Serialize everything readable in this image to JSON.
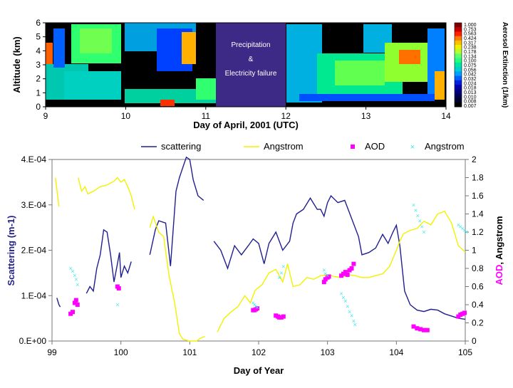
{
  "lidar_panel": {
    "y_label": "Altitude (km)",
    "x_label": "Day of April, 2001 (UTC)",
    "y_ticks": [
      "0",
      "1",
      "2",
      "3",
      "4",
      "5",
      "6"
    ],
    "x_ticks": [
      "9",
      "10",
      "11",
      "12",
      "13",
      "14"
    ],
    "annotation_lines": [
      "Precipitation",
      "&",
      "Electricity failure"
    ],
    "colorbar_label": "Aerosol Extinction (1/km)",
    "colorbar_ticks": [
      "1.000",
      "0.753",
      "0.563",
      "0.424",
      "0.317",
      "0.238",
      "0.178",
      "0.134",
      "0.100",
      "0.075",
      "0.056",
      "0.042",
      "0.032",
      "0.024",
      "0.018",
      "0.013",
      "0.010",
      "0.008",
      "0.007"
    ],
    "colormap": [
      "#7a0000",
      "#c40000",
      "#ff2000",
      "#ff7a00",
      "#ffc000",
      "#f0f000",
      "#b0ff30",
      "#60ff70",
      "#20ff80",
      "#00e8a0",
      "#00d0d0",
      "#00a0ff",
      "#0060ff",
      "#0020e0",
      "#0000b0",
      "#000080",
      "#000050",
      "#000030",
      "#000000"
    ]
  },
  "chart_data": {
    "type": "line",
    "xlabel": "Day of Year",
    "ylabel_left": "Scattering (m-1)",
    "ylabel_right_parts": [
      "AOD",
      ", Angstrom"
    ],
    "xlim": [
      99,
      105
    ],
    "ylim_left": [
      0,
      0.0004
    ],
    "ylim_right": [
      0,
      2
    ],
    "x_ticks": [
      "99",
      "100",
      "101",
      "102",
      "103",
      "104",
      "105"
    ],
    "y_left_ticks": [
      "0.E+00",
      "1.E-04",
      "2.E-04",
      "3.E-04",
      "4.E-04"
    ],
    "y_right_ticks": [
      "0",
      "0.2",
      "0.4",
      "0.6",
      "0.8",
      "1",
      "1.2",
      "1.4",
      "1.6",
      "1.8",
      "2"
    ],
    "legend_position": "top",
    "series": [
      {
        "name": "scattering",
        "axis": "left",
        "style": "line",
        "color": "#1f1f8f",
        "segments": [
          [
            [
              99.07,
              9.5e-05
            ],
            [
              99.1,
              8e-05
            ],
            [
              99.12,
              7.5e-05
            ]
          ],
          [
            [
              99.5,
              0.000105
            ],
            [
              99.55,
              0.00012
            ],
            [
              99.6,
              0.00011
            ],
            [
              99.65,
              0.00016
            ],
            [
              99.7,
              0.00019
            ],
            [
              99.75,
              0.000245
            ],
            [
              99.8,
              0.00024
            ],
            [
              99.85,
              0.00019
            ],
            [
              99.9,
              0.00013
            ],
            [
              99.95,
              0.00017
            ],
            [
              99.98,
              0.000195
            ],
            [
              100.0,
              0.00014
            ],
            [
              100.05,
              0.000165
            ],
            [
              100.1,
              0.00015
            ],
            [
              100.15,
              0.000175
            ]
          ],
          [
            [
              100.42,
              0.00019
            ],
            [
              100.5,
              0.000245
            ],
            [
              100.55,
              0.000265
            ],
            [
              100.65,
              0.00026
            ],
            [
              100.72,
              0.000165
            ],
            [
              100.8,
              0.00033
            ],
            [
              100.85,
              0.00036
            ],
            [
              100.95,
              0.000405
            ],
            [
              101.0,
              0.0004
            ],
            [
              101.05,
              0.000355
            ],
            [
              101.12,
              0.00032
            ],
            [
              101.2,
              0.00031
            ]
          ],
          [
            [
              101.35,
              0.00022
            ],
            [
              101.45,
              0.0002
            ],
            [
              101.55,
              0.00016
            ],
            [
              101.65,
              0.00021
            ],
            [
              101.75,
              0.00019
            ],
            [
              101.85,
              0.00021
            ],
            [
              101.92,
              0.000225
            ],
            [
              102.0,
              0.000215
            ],
            [
              102.08,
              0.00017
            ],
            [
              102.15,
              0.000215
            ],
            [
              102.25,
              0.00024
            ],
            [
              102.35,
              0.0002
            ],
            [
              102.45,
              0.00022
            ],
            [
              102.5,
              0.00026
            ],
            [
              102.55,
              0.00028
            ],
            [
              102.65,
              0.00029
            ],
            [
              102.75,
              0.000315
            ],
            [
              102.85,
              0.00029
            ],
            [
              102.9,
              0.00029
            ],
            [
              102.95,
              0.000275
            ],
            [
              103.0,
              0.000305
            ],
            [
              103.05,
              0.00032
            ],
            [
              103.15,
              0.000305
            ],
            [
              103.25,
              0.00031
            ],
            [
              103.35,
              0.00027
            ],
            [
              103.45,
              0.00023
            ],
            [
              103.5,
              0.00019
            ],
            [
              103.6,
              0.000195
            ],
            [
              103.7,
              0.000205
            ],
            [
              103.8,
              0.000235
            ],
            [
              103.88,
              0.000215
            ],
            [
              103.95,
              0.00024
            ],
            [
              104.0,
              0.000255
            ],
            [
              104.05,
              0.00021
            ],
            [
              104.12,
              0.00011
            ],
            [
              104.2,
              8e-05
            ],
            [
              104.3,
              6.8e-05
            ],
            [
              104.4,
              6.5e-05
            ],
            [
              104.5,
              7e-05
            ],
            [
              104.6,
              6.8e-05
            ],
            [
              104.7,
              6e-05
            ],
            [
              104.8,
              5.5e-05
            ],
            [
              104.9,
              5e-05
            ],
            [
              105.0,
              4.8e-05
            ]
          ]
        ]
      },
      {
        "name": "Angstrom",
        "axis": "right",
        "style": "line",
        "color": "#f2f200",
        "segments": [
          [
            [
              99.05,
              1.8
            ],
            [
              99.1,
              1.48
            ]
          ],
          [
            [
              99.38,
              1.8
            ],
            [
              99.43,
              1.65
            ],
            [
              99.48,
              1.7
            ],
            [
              99.52,
              1.62
            ],
            [
              99.6,
              1.65
            ],
            [
              99.7,
              1.7
            ],
            [
              99.8,
              1.72
            ],
            [
              99.9,
              1.76
            ],
            [
              99.95,
              1.8
            ],
            [
              100.0,
              1.75
            ],
            [
              100.05,
              1.78
            ],
            [
              100.1,
              1.7
            ],
            [
              100.15,
              1.6
            ],
            [
              100.2,
              1.45
            ]
          ],
          [
            [
              100.42,
              1.25
            ],
            [
              100.47,
              1.37
            ],
            [
              100.55,
              1.2
            ],
            [
              100.62,
              1.15
            ],
            [
              100.7,
              0.72
            ],
            [
              100.78,
              0.42
            ],
            [
              100.85,
              0.08
            ],
            [
              100.9,
              0.02
            ],
            [
              101.0,
              0.0
            ],
            [
              101.1,
              0.0
            ],
            [
              101.15,
              0.03
            ],
            [
              101.22,
              0.05
            ]
          ],
          [
            [
              101.4,
              0.1
            ],
            [
              101.5,
              0.25
            ],
            [
              101.6,
              0.32
            ],
            [
              101.7,
              0.38
            ],
            [
              101.8,
              0.5
            ],
            [
              101.88,
              0.42
            ],
            [
              101.95,
              0.56
            ],
            [
              102.05,
              0.62
            ],
            [
              102.15,
              0.75
            ],
            [
              102.25,
              0.79
            ],
            [
              102.3,
              0.72
            ],
            [
              102.35,
              0.65
            ],
            [
              102.42,
              0.85
            ],
            [
              102.5,
              0.6
            ],
            [
              102.6,
              0.62
            ],
            [
              102.7,
              0.7
            ],
            [
              102.8,
              0.68
            ],
            [
              102.9,
              0.72
            ],
            [
              103.0,
              0.73
            ],
            [
              103.1,
              0.71
            ],
            [
              103.2,
              0.7
            ],
            [
              103.3,
              0.73
            ],
            [
              103.4,
              0.72
            ],
            [
              103.5,
              0.7
            ],
            [
              103.6,
              0.7
            ],
            [
              103.7,
              0.72
            ],
            [
              103.8,
              0.74
            ],
            [
              103.9,
              0.82
            ],
            [
              104.0,
              1.0
            ],
            [
              104.05,
              1.1
            ],
            [
              104.1,
              1.18
            ],
            [
              104.2,
              1.22
            ],
            [
              104.3,
              1.24
            ],
            [
              104.4,
              1.32
            ],
            [
              104.5,
              1.28
            ],
            [
              104.6,
              1.4
            ],
            [
              104.7,
              1.43
            ],
            [
              104.8,
              1.3
            ],
            [
              104.9,
              1.05
            ],
            [
              105.0,
              0.98
            ]
          ]
        ]
      },
      {
        "name": "AOD",
        "axis": "right",
        "style": "markers",
        "color": "#ff00ff",
        "points": [
          [
            99.27,
            0.3
          ],
          [
            99.3,
            0.32
          ],
          [
            99.33,
            0.42
          ],
          [
            99.35,
            0.45
          ],
          [
            99.37,
            0.4
          ],
          [
            99.95,
            0.6
          ],
          [
            99.97,
            0.58
          ],
          [
            101.92,
            0.34
          ],
          [
            101.94,
            0.34
          ],
          [
            101.96,
            0.35
          ],
          [
            101.98,
            0.36
          ],
          [
            102.25,
            0.28
          ],
          [
            102.28,
            0.27
          ],
          [
            102.3,
            0.26
          ],
          [
            102.33,
            0.26
          ],
          [
            102.36,
            0.27
          ],
          [
            102.95,
            0.65
          ],
          [
            102.97,
            0.68
          ],
          [
            103.0,
            0.7
          ],
          [
            103.02,
            0.71
          ],
          [
            103.2,
            0.72
          ],
          [
            103.23,
            0.74
          ],
          [
            103.26,
            0.76
          ],
          [
            103.29,
            0.73
          ],
          [
            103.32,
            0.78
          ],
          [
            103.35,
            0.8
          ],
          [
            103.38,
            0.85
          ],
          [
            104.25,
            0.16
          ],
          [
            104.3,
            0.14
          ],
          [
            104.35,
            0.13
          ],
          [
            104.4,
            0.12
          ],
          [
            104.45,
            0.12
          ],
          [
            104.9,
            0.27
          ],
          [
            104.93,
            0.29
          ],
          [
            104.96,
            0.3
          ],
          [
            104.99,
            0.31
          ]
        ]
      },
      {
        "name": "Angstrom",
        "axis": "right",
        "style": "markers",
        "color": "#3fe8e8",
        "points": [
          [
            99.27,
            0.8
          ],
          [
            99.3,
            0.77
          ],
          [
            99.33,
            0.72
          ],
          [
            99.35,
            0.68
          ],
          [
            99.37,
            0.62
          ],
          [
            99.95,
            0.4
          ],
          [
            101.92,
            0.42
          ],
          [
            101.94,
            0.4
          ],
          [
            101.96,
            0.38
          ],
          [
            101.98,
            0.37
          ],
          [
            102.3,
            0.7
          ],
          [
            102.33,
            0.75
          ],
          [
            102.36,
            0.82
          ],
          [
            102.95,
            0.78
          ],
          [
            102.97,
            0.74
          ],
          [
            103.0,
            0.72
          ],
          [
            103.2,
            0.52
          ],
          [
            103.23,
            0.48
          ],
          [
            103.26,
            0.44
          ],
          [
            103.29,
            0.38
          ],
          [
            103.32,
            0.32
          ],
          [
            103.35,
            0.28
          ],
          [
            103.38,
            0.22
          ],
          [
            103.4,
            0.18
          ],
          [
            104.25,
            1.5
          ],
          [
            104.28,
            1.44
          ],
          [
            104.31,
            1.38
          ],
          [
            104.34,
            1.32
          ],
          [
            104.37,
            1.26
          ],
          [
            104.4,
            1.2
          ],
          [
            104.9,
            1.28
          ],
          [
            104.93,
            1.26
          ],
          [
            104.96,
            1.24
          ],
          [
            104.99,
            1.22
          ],
          [
            105.02,
            1.2
          ]
        ]
      }
    ]
  }
}
